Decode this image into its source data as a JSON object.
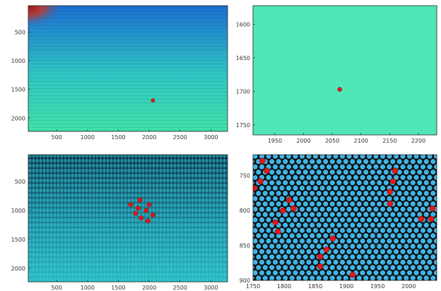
{
  "chart_data": [
    {
      "type": "heatmap",
      "panel": "top-left",
      "description_visible": "smooth colour gradient, dark red corner at top-left, single red marker",
      "x_ticks": [
        "500",
        "1000",
        "1500",
        "2000",
        "2500",
        "3000"
      ],
      "y_ticks": [
        "500",
        "1000",
        "1500",
        "2000"
      ],
      "xlim": [
        40,
        3270
      ],
      "ylim": [
        2230,
        40
      ],
      "gradient_colors": [
        "#1b6fd0",
        "#2fc6c4",
        "#42e0a8"
      ],
      "marker_color": "#e01818",
      "markers": [
        {
          "x": 2060,
          "y": 1690
        }
      ]
    },
    {
      "type": "heatmap",
      "panel": "top-right",
      "x_ticks": [
        "1950",
        "2000",
        "2050",
        "2100",
        "2150",
        "2200"
      ],
      "y_ticks": [
        "1600",
        "1650",
        "1700",
        "1750"
      ],
      "xlim": [
        1912,
        2232
      ],
      "ylim": [
        1765,
        1572
      ],
      "fill_color": "#4fe6b8",
      "marker_color": "#e01818",
      "markers": [
        {
          "x": 2063,
          "y": 1697
        }
      ]
    },
    {
      "type": "heatmap",
      "panel": "bottom-left",
      "x_ticks": [
        "500",
        "1000",
        "1500",
        "2000",
        "2500",
        "3000"
      ],
      "y_ticks": [
        "500",
        "1000",
        "1500",
        "2000"
      ],
      "xlim": [
        40,
        3270
      ],
      "ylim": [
        2230,
        40
      ],
      "base_colors": [
        "#0c3a52",
        "#1d8ea6",
        "#2ab8c0"
      ],
      "marker_color": "#e01818",
      "markers": [
        {
          "x": 1700,
          "y": 900
        },
        {
          "x": 1850,
          "y": 820
        },
        {
          "x": 2000,
          "y": 900
        },
        {
          "x": 1780,
          "y": 1050
        },
        {
          "x": 1950,
          "y": 1000
        },
        {
          "x": 1870,
          "y": 1130
        },
        {
          "x": 2060,
          "y": 1080
        },
        {
          "x": 1820,
          "y": 960
        },
        {
          "x": 1980,
          "y": 1180
        }
      ]
    },
    {
      "type": "scatter",
      "panel": "bottom-right",
      "x_ticks": [
        "1750",
        "1800",
        "1850",
        "1900",
        "1950",
        "2000"
      ],
      "y_ticks": [
        "750",
        "800",
        "850",
        "900"
      ],
      "xlim": [
        1750,
        2045
      ],
      "ylim": [
        900,
        720
      ],
      "background_color": "#111111",
      "cell_color": "#3fb4e6",
      "marker_color": "#e01818",
      "markers": [
        {
          "x": 1765,
          "y": 729
        },
        {
          "x": 1772,
          "y": 743
        },
        {
          "x": 1762,
          "y": 758
        },
        {
          "x": 1752,
          "y": 768
        },
        {
          "x": 1808,
          "y": 785
        },
        {
          "x": 1815,
          "y": 797
        },
        {
          "x": 1798,
          "y": 800
        },
        {
          "x": 1786,
          "y": 817
        },
        {
          "x": 1790,
          "y": 830
        },
        {
          "x": 1878,
          "y": 840
        },
        {
          "x": 1868,
          "y": 856
        },
        {
          "x": 1858,
          "y": 866
        },
        {
          "x": 1858,
          "y": 880
        },
        {
          "x": 1910,
          "y": 892
        },
        {
          "x": 1978,
          "y": 743
        },
        {
          "x": 1975,
          "y": 758
        },
        {
          "x": 1970,
          "y": 773
        },
        {
          "x": 1970,
          "y": 790
        },
        {
          "x": 2038,
          "y": 797
        },
        {
          "x": 2020,
          "y": 812
        },
        {
          "x": 2036,
          "y": 812
        }
      ]
    }
  ]
}
